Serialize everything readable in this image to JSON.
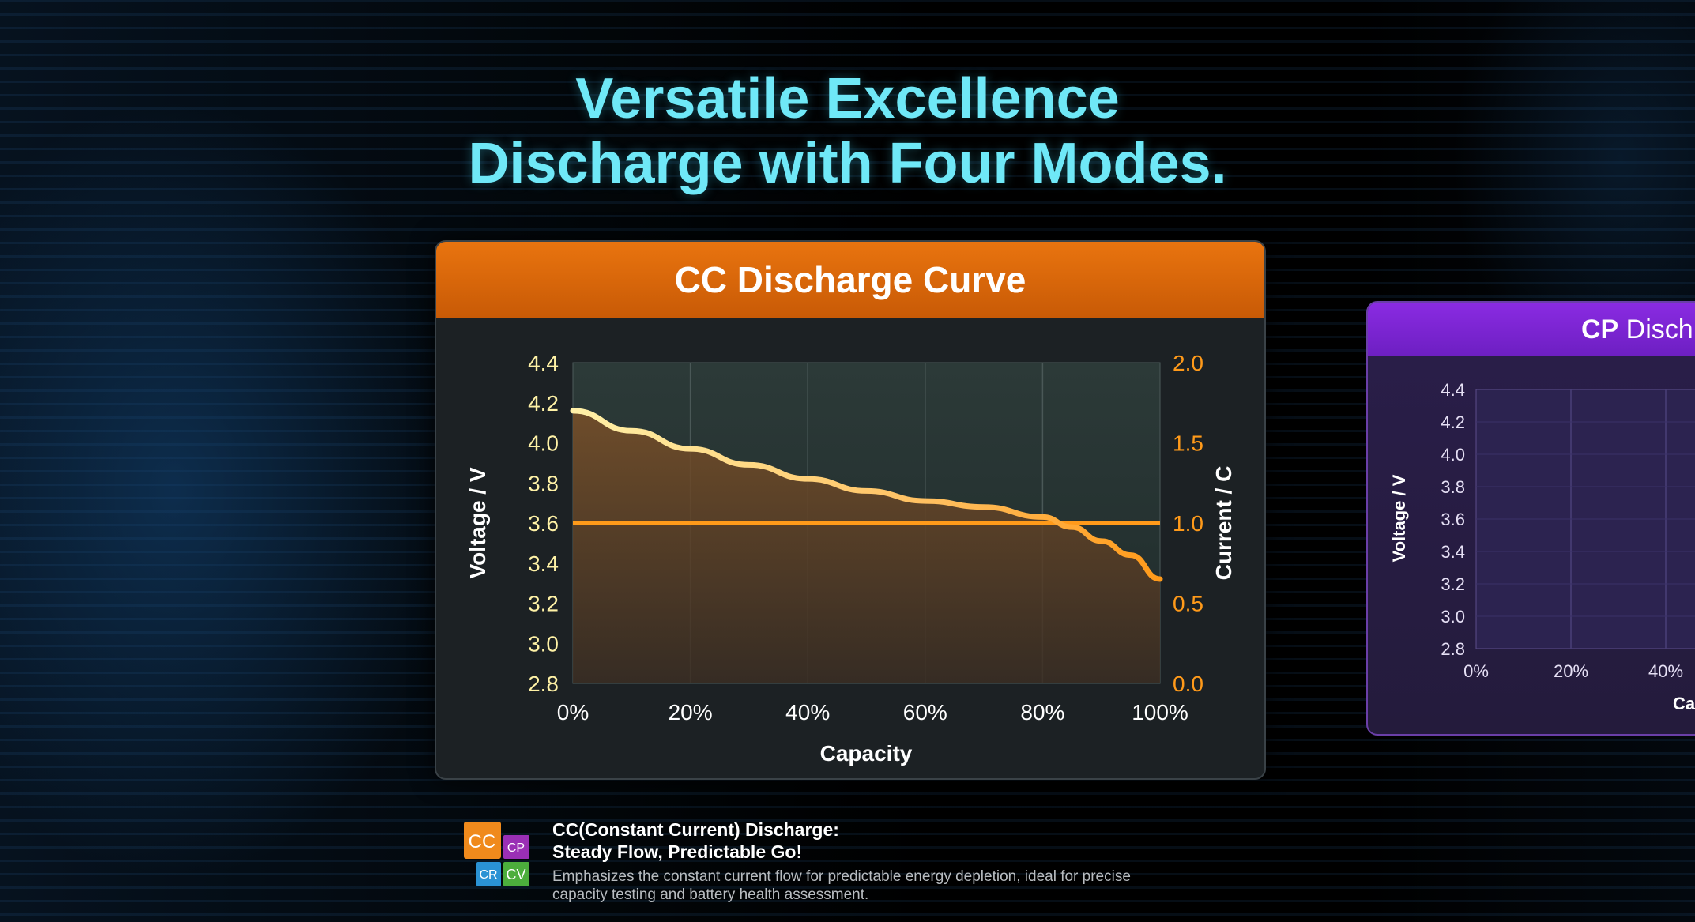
{
  "title": {
    "line1": "Versatile Excellence",
    "line2": "Discharge with Four Modes."
  },
  "colors": {
    "title": "#6fe8f7",
    "cc_header": "#e9740f",
    "cp_header": "#8a2be2",
    "voltage_curve": "#ffd27a",
    "current_line": "#ff9a1a",
    "left_tick": "#fff2a6",
    "right_tick": "#ff9a1a"
  },
  "chart_data": [
    {
      "type": "line",
      "title": "CC Discharge Curve",
      "xlabel": "Capacity",
      "ylabel": "Voltage / V",
      "y2label": "Current / C",
      "x_ticks": [
        "0%",
        "20%",
        "40%",
        "60%",
        "80%",
        "100%"
      ],
      "xlim": [
        0,
        100
      ],
      "y_ticks": [
        "4.4",
        "4.2",
        "4.0",
        "3.8",
        "3.6",
        "3.4",
        "3.2",
        "3.0",
        "2.8"
      ],
      "ylim": [
        2.8,
        4.4
      ],
      "y2_ticks": [
        "2.0",
        "1.5",
        "1.0",
        "0.5",
        "0.0"
      ],
      "y2lim": [
        0,
        2
      ],
      "grid": true,
      "series": [
        {
          "name": "Voltage",
          "axis": "left",
          "x": [
            0,
            10,
            20,
            30,
            40,
            50,
            60,
            70,
            80,
            85,
            90,
            95,
            100
          ],
          "y": [
            4.16,
            4.06,
            3.97,
            3.89,
            3.82,
            3.76,
            3.71,
            3.68,
            3.63,
            3.58,
            3.51,
            3.44,
            3.32
          ]
        },
        {
          "name": "Current",
          "axis": "right",
          "x": [
            0,
            100
          ],
          "y": [
            1.0,
            1.0
          ]
        }
      ]
    },
    {
      "type": "line",
      "title_bold": "CP",
      "title_rest": " Disch",
      "xlabel": "Ca",
      "ylabel": "Voltage / V",
      "x_ticks": [
        "0%",
        "20%",
        "40%"
      ],
      "y_ticks": [
        "4.4",
        "4.2",
        "4.0",
        "3.8",
        "3.6",
        "3.4",
        "3.2",
        "3.0",
        "2.8"
      ],
      "ylim": [
        2.8,
        4.4
      ],
      "grid": true
    }
  ],
  "legend_icon": {
    "cc": "CC",
    "cp": "CP",
    "cr": "CR",
    "cv": "CV"
  },
  "description": {
    "heading1": "CC(Constant Current) Discharge:",
    "heading2": "Steady Flow, Predictable Go!",
    "body1": "Emphasizes the constant current flow for predictable energy depletion, ideal for precise",
    "body2": "capacity testing and battery health assessment."
  }
}
